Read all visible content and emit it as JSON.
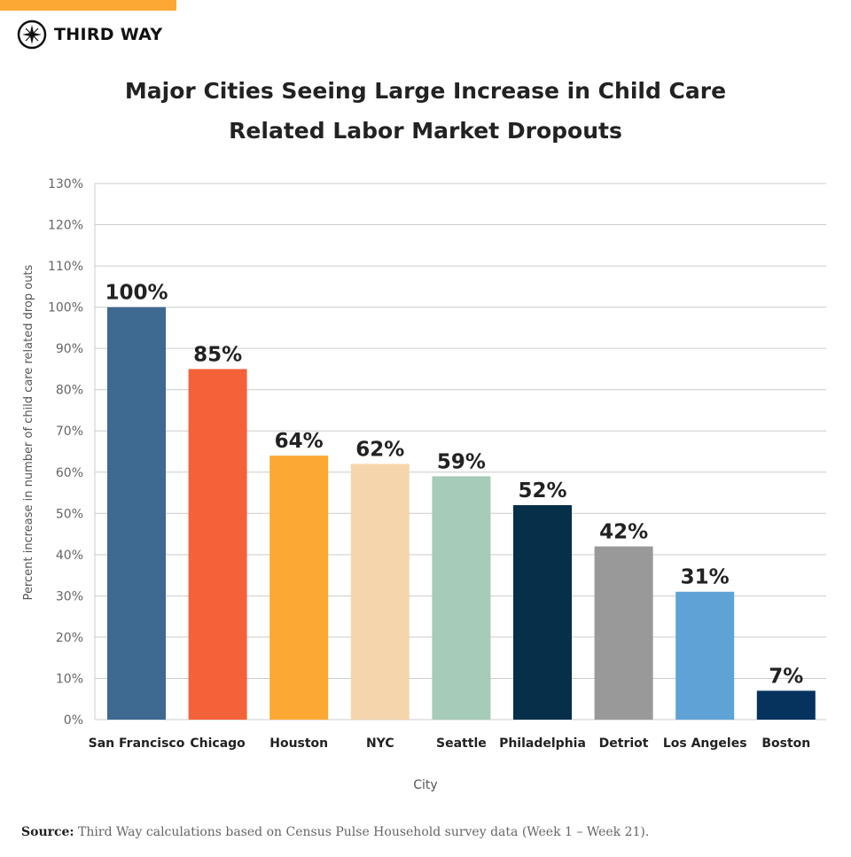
{
  "brand": {
    "name": "THIRD WAY",
    "accent": "#fba834"
  },
  "chart_data": {
    "type": "bar",
    "title_line1": "Major Cities Seeing Large Increase in Child Care",
    "title_line2": "Related Labor Market Dropouts",
    "xlabel": "City",
    "ylabel": "Percent increase in number of child care related drop outs",
    "categories": [
      "San Francisco",
      "Chicago",
      "Houston",
      "NYC",
      "Seattle",
      "Philadelphia",
      "Detriot",
      "Los Angeles",
      "Boston"
    ],
    "values": [
      100,
      85,
      64,
      62,
      59,
      52,
      42,
      31,
      7
    ],
    "data_labels": [
      "100%",
      "85%",
      "64%",
      "62%",
      "59%",
      "52%",
      "42%",
      "31%",
      "7%"
    ],
    "colors": [
      "#3e6990",
      "#f4623a",
      "#fba834",
      "#f5d5ac",
      "#a6cbb8",
      "#062f4a",
      "#999999",
      "#5fa2d6",
      "#06325e"
    ],
    "ylim": [
      0,
      130
    ],
    "yticks": [
      "0%",
      "10%",
      "20%",
      "30%",
      "40%",
      "50%",
      "60%",
      "70%",
      "80%",
      "90%",
      "100%",
      "110%",
      "120%",
      "130%"
    ],
    "grid": true
  },
  "source": {
    "label": "Source:",
    "text": " Third Way calculations based on Census Pulse Household survey data (Week 1 – Week 21)."
  }
}
